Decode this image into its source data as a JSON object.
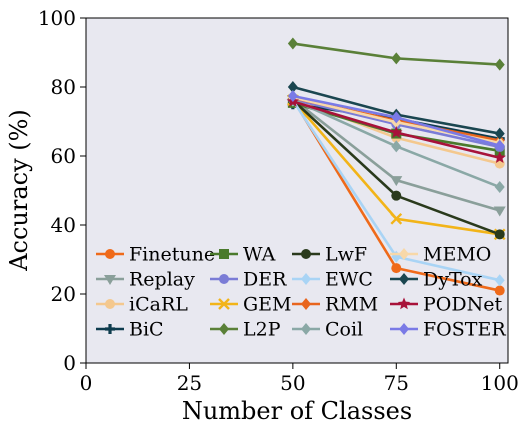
{
  "chart_data": {
    "type": "line",
    "title": "",
    "xlabel": "Number of Classes",
    "ylabel": "Accuracy (%)",
    "xlim": [
      0,
      102
    ],
    "ylim": [
      0,
      100
    ],
    "xticks": [
      0,
      25,
      50,
      75,
      100
    ],
    "yticks": [
      0,
      20,
      40,
      60,
      80,
      100
    ],
    "grid": false,
    "background": "#e8e8f0",
    "legend_position": "lower-left, 4 columns",
    "x": [
      50,
      75,
      100
    ],
    "series": [
      {
        "name": "Finetune",
        "color": "#ef6a1a",
        "marker": "circle",
        "values": [
          76.5,
          27.5,
          21.0
        ]
      },
      {
        "name": "Replay",
        "color": "#8a9f9a",
        "marker": "triangle-down",
        "values": [
          76.5,
          53.0,
          44.2
        ]
      },
      {
        "name": "iCaRL",
        "color": "#f4c88e",
        "marker": "circle",
        "values": [
          76.6,
          65.3,
          57.8
        ]
      },
      {
        "name": "BiC",
        "color": "#0e3c4e",
        "marker": "plus",
        "values": [
          75.0,
          70.8,
          65.0
        ]
      },
      {
        "name": "WA",
        "color": "#4a7a2c",
        "marker": "square",
        "values": [
          75.4,
          66.5,
          61.5
        ]
      },
      {
        "name": "DER",
        "color": "#7b7cd6",
        "marker": "circle",
        "values": [
          76.4,
          69.2,
          62.6
        ]
      },
      {
        "name": "GEM",
        "color": "#f2b418",
        "marker": "x",
        "values": [
          76.2,
          41.8,
          37.3
        ]
      },
      {
        "name": "L2P",
        "color": "#5a8038",
        "marker": "diamond",
        "values": [
          92.6,
          88.3,
          86.5
        ]
      },
      {
        "name": "LwF",
        "color": "#2a3a1c",
        "marker": "circle",
        "values": [
          76.2,
          48.5,
          37.3
        ]
      },
      {
        "name": "EWC",
        "color": "#a9d4f5",
        "marker": "diamond",
        "values": [
          76.1,
          30.8,
          24.0
        ]
      },
      {
        "name": "RMM",
        "color": "#e8651e",
        "marker": "diamond",
        "values": [
          76.8,
          70.3,
          64.5
        ]
      },
      {
        "name": "Coil",
        "color": "#8aa8a6",
        "marker": "diamond",
        "values": [
          76.3,
          62.8,
          51.0
        ]
      },
      {
        "name": "MEMO",
        "color": "#f8d8a8",
        "marker": "diamond",
        "values": [
          77.0,
          69.8,
          63.8
        ]
      },
      {
        "name": "DyTox",
        "color": "#1a4650",
        "marker": "diamond",
        "values": [
          80.0,
          72.0,
          66.5
        ]
      },
      {
        "name": "PODNet",
        "color": "#a8123a",
        "marker": "star",
        "values": [
          75.8,
          66.8,
          59.5
        ]
      },
      {
        "name": "FOSTER",
        "color": "#7a7ae6",
        "marker": "diamond",
        "values": [
          77.4,
          71.2,
          63.0
        ]
      }
    ]
  }
}
